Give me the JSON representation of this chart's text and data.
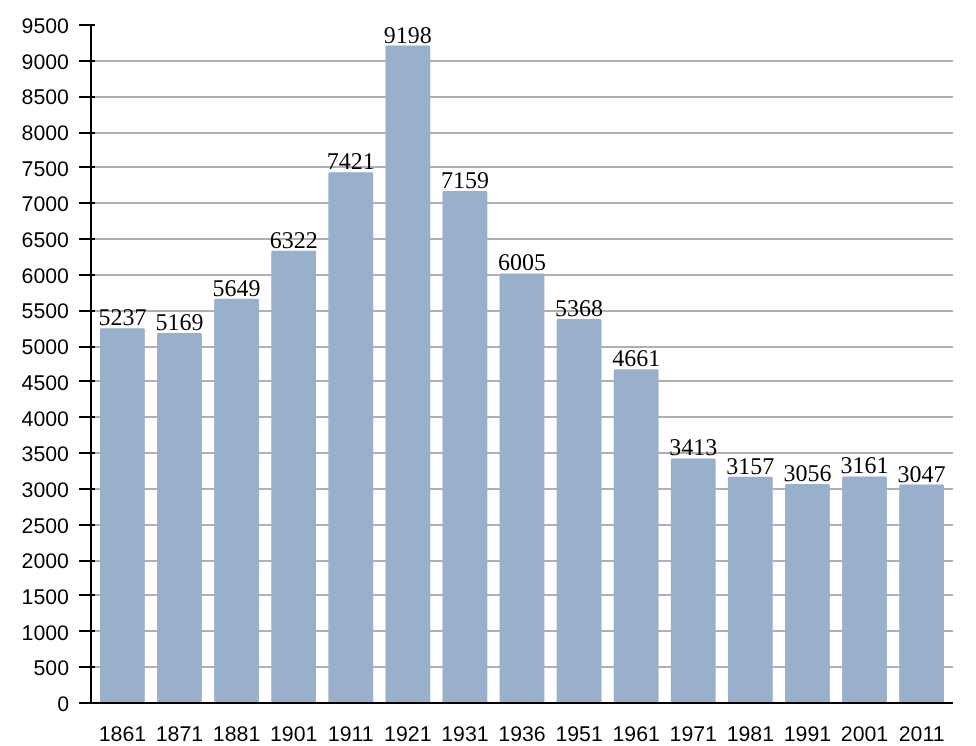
{
  "chart_data": {
    "type": "bar",
    "categories": [
      "1861",
      "1871",
      "1881",
      "1901",
      "1911",
      "1921",
      "1931",
      "1936",
      "1951",
      "1961",
      "1971",
      "1981",
      "1991",
      "2001",
      "2011"
    ],
    "values": [
      5237,
      5169,
      5649,
      6322,
      7421,
      9198,
      7159,
      6005,
      5368,
      4661,
      3413,
      3157,
      3056,
      3161,
      3047
    ],
    "color": "#98b0cb",
    "data_labels": true,
    "ylim": [
      0,
      9500
    ],
    "yticks": [
      0,
      500,
      1000,
      1500,
      2000,
      2500,
      3000,
      3500,
      4000,
      4500,
      5000,
      5500,
      6000,
      6500,
      7000,
      7500,
      8000,
      8500,
      9000,
      9500
    ],
    "grid": "y"
  }
}
